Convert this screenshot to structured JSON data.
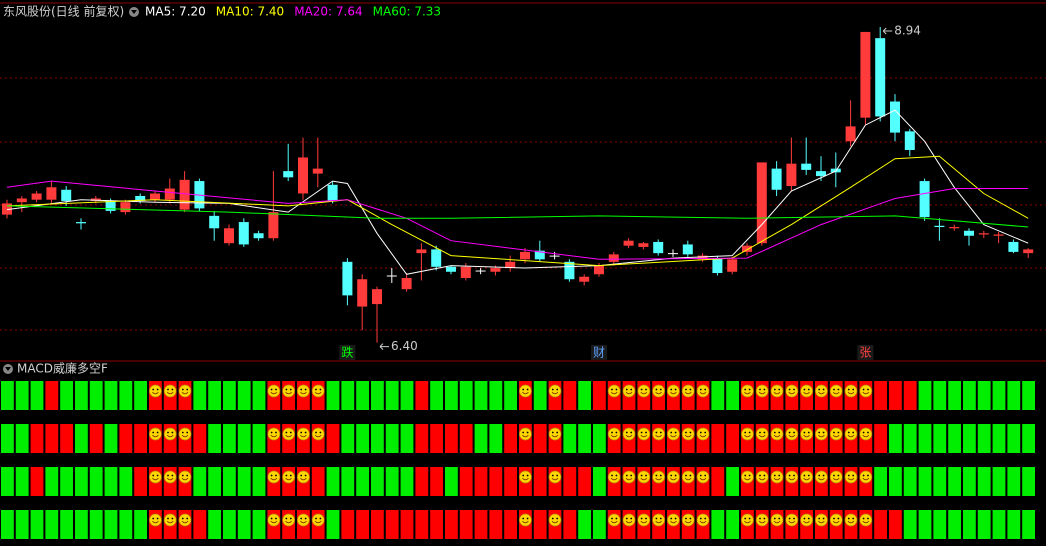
{
  "chart_data": [
    {
      "type": "candlestick",
      "title": "东风股份(日线 前复权)",
      "up_color": "#ff3b3b",
      "down_color": "#54ffff",
      "flat_color": "#ffffff",
      "ylim": [
        6.26,
        8.98
      ],
      "open": [
        7.43,
        7.53,
        7.55,
        7.55,
        7.63,
        7.37,
        7.54,
        7.54,
        7.45,
        7.58,
        7.55,
        7.55,
        7.47,
        7.7,
        7.42,
        7.2,
        7.37,
        7.28,
        7.24,
        7.78,
        7.6,
        7.76,
        7.67,
        7.05,
        6.69,
        6.71,
        6.94,
        6.83,
        7.12,
        7.15,
        7.01,
        6.92,
        6.98,
        6.97,
        7.0,
        7.07,
        7.14,
        7.1,
        7.05,
        6.89,
        6.95,
        7.05,
        7.18,
        7.17,
        7.21,
        7.12,
        7.19,
        7.07,
        7.08,
        6.97,
        7.13,
        7.2,
        7.8,
        7.66,
        7.84,
        7.78,
        7.8,
        8.02,
        8.21,
        8.85,
        8.34,
        8.1,
        7.7,
        7.34,
        7.32,
        7.3,
        7.27,
        7.26,
        7.21,
        7.12
      ],
      "high": [
        7.55,
        7.58,
        7.62,
        7.7,
        7.66,
        7.4,
        7.58,
        7.56,
        7.55,
        7.6,
        7.62,
        7.72,
        7.78,
        7.72,
        7.46,
        7.35,
        7.4,
        7.3,
        7.78,
        8.0,
        8.05,
        8.05,
        7.7,
        7.08,
        6.95,
        6.85,
        7.0,
        6.96,
        7.2,
        7.18,
        7.02,
        7.04,
        7.0,
        7.02,
        7.1,
        7.16,
        7.22,
        7.13,
        7.07,
        6.95,
        7.04,
        7.13,
        7.24,
        7.21,
        7.23,
        7.15,
        7.22,
        7.12,
        7.1,
        7.09,
        7.2,
        7.85,
        7.86,
        8.05,
        8.05,
        7.9,
        7.93,
        8.35,
        8.9,
        8.94,
        8.4,
        8.12,
        7.72,
        7.4,
        7.35,
        7.32,
        7.3,
        7.29,
        7.23,
        7.16
      ],
      "low": [
        7.4,
        7.45,
        7.53,
        7.52,
        7.5,
        7.31,
        7.52,
        7.44,
        7.43,
        7.52,
        7.53,
        7.52,
        7.45,
        7.46,
        7.22,
        7.18,
        7.17,
        7.22,
        7.22,
        7.7,
        7.55,
        7.65,
        7.52,
        6.7,
        6.5,
        6.4,
        6.88,
        6.81,
        6.9,
        6.98,
        6.95,
        6.9,
        6.95,
        6.94,
        6.97,
        7.04,
        7.05,
        7.07,
        6.89,
        6.86,
        6.93,
        7.02,
        7.16,
        7.15,
        7.1,
        7.09,
        7.09,
        7.05,
        6.94,
        6.95,
        7.1,
        7.18,
        7.58,
        7.62,
        7.75,
        7.7,
        7.65,
        7.98,
        8.15,
        8.18,
        8.02,
        7.9,
        7.38,
        7.22,
        7.3,
        7.18,
        7.24,
        7.2,
        7.12,
        7.08
      ],
      "close": [
        7.52,
        7.56,
        7.6,
        7.65,
        7.54,
        7.36,
        7.56,
        7.46,
        7.53,
        7.54,
        7.6,
        7.64,
        7.71,
        7.48,
        7.32,
        7.32,
        7.19,
        7.24,
        7.45,
        7.73,
        7.89,
        7.8,
        7.54,
        6.78,
        6.91,
        6.83,
        6.94,
        6.92,
        7.15,
        7.01,
        6.97,
        7.01,
        6.98,
        7.0,
        7.05,
        7.13,
        7.07,
        7.1,
        6.91,
        6.93,
        7.02,
        7.11,
        7.22,
        7.2,
        7.12,
        7.12,
        7.11,
        7.1,
        6.96,
        7.07,
        7.18,
        7.85,
        7.63,
        7.84,
        7.79,
        7.74,
        7.77,
        8.14,
        8.9,
        8.22,
        8.09,
        7.95,
        7.41,
        7.33,
        7.33,
        7.26,
        7.28,
        7.27,
        7.13,
        7.15
      ],
      "ma_series": [
        {
          "name": "MA5",
          "legend_label": "MA5: 7.20",
          "color": "#ffffff",
          "x": [
            0,
            5,
            10,
            15,
            19,
            22,
            23,
            25,
            27,
            30,
            35,
            40,
            45,
            49,
            51,
            53,
            56,
            58,
            60,
            62,
            64,
            66,
            69
          ],
          "values": [
            7.47,
            7.55,
            7.53,
            7.52,
            7.45,
            7.7,
            7.68,
            7.28,
            6.95,
            7.02,
            7.0,
            7.02,
            7.08,
            7.1,
            7.35,
            7.62,
            7.78,
            8.15,
            8.27,
            8.02,
            7.65,
            7.35,
            7.2
          ]
        },
        {
          "name": "MA10",
          "legend_label": "MA10: 7.40",
          "color": "#ffff00",
          "x": [
            0,
            10,
            19,
            23,
            26,
            30,
            40,
            49,
            53,
            57,
            60,
            63,
            66,
            69
          ],
          "values": [
            7.5,
            7.55,
            7.5,
            7.55,
            7.35,
            7.1,
            7.02,
            7.08,
            7.35,
            7.65,
            7.88,
            7.9,
            7.6,
            7.4
          ]
        },
        {
          "name": "MA20",
          "legend_label": "MA20: 7.64",
          "color": "#ff00ff",
          "x": [
            0,
            3,
            10,
            19,
            23,
            27,
            30,
            40,
            50,
            55,
            60,
            64,
            69
          ],
          "values": [
            7.65,
            7.7,
            7.62,
            7.52,
            7.55,
            7.4,
            7.22,
            7.07,
            7.08,
            7.35,
            7.56,
            7.64,
            7.64
          ]
        },
        {
          "name": "MA60",
          "legend_label": "MA60: 7.33",
          "color": "#00ff00",
          "x": [
            0,
            15,
            25,
            30,
            40,
            50,
            60,
            64,
            69
          ],
          "values": [
            7.5,
            7.45,
            7.4,
            7.4,
            7.42,
            7.4,
            7.42,
            7.38,
            7.33
          ]
        }
      ],
      "annotations": [
        {
          "index": 59,
          "value": 8.94,
          "label": "8.94"
        },
        {
          "index": 25,
          "value": 6.4,
          "label": "6.40"
        }
      ],
      "markers": [
        {
          "index": 23,
          "label": "跌",
          "color": "#00ff00"
        },
        {
          "index": 40,
          "label": "财",
          "color": "#5fa0ff"
        },
        {
          "index": 58,
          "label": "张",
          "color": "#ff4040"
        }
      ]
    },
    {
      "type": "signal-grid",
      "title": "MACD威廉多空F",
      "cell_colors": {
        "g": "#00ee00",
        "r": "#ff0000",
        "s": "#ff0000"
      },
      "rows": [
        [
          "g",
          "g",
          "g",
          "r",
          "g",
          "g",
          "g",
          "g",
          "g",
          "g",
          "s",
          "s",
          "s",
          "g",
          "g",
          "g",
          "g",
          "g",
          "s",
          "s",
          "s",
          "s",
          "g",
          "g",
          "g",
          "g",
          "g",
          "g",
          "r",
          "g",
          "g",
          "g",
          "g",
          "g",
          "g",
          "s",
          "g",
          "s",
          "r",
          "g",
          "r",
          "s",
          "s",
          "s",
          "s",
          "s",
          "s",
          "s",
          "g",
          "g",
          "s",
          "s",
          "s",
          "s",
          "s",
          "s",
          "s",
          "s",
          "s",
          "r",
          "r",
          "r",
          "g",
          "g",
          "g",
          "g",
          "g",
          "g",
          "g",
          "g"
        ],
        [
          "g",
          "g",
          "r",
          "r",
          "r",
          "g",
          "r",
          "g",
          "r",
          "r",
          "s",
          "s",
          "s",
          "r",
          "g",
          "g",
          "g",
          "g",
          "s",
          "s",
          "s",
          "s",
          "r",
          "g",
          "g",
          "g",
          "g",
          "g",
          "r",
          "r",
          "r",
          "r",
          "g",
          "g",
          "r",
          "s",
          "r",
          "s",
          "g",
          "g",
          "g",
          "s",
          "s",
          "s",
          "s",
          "s",
          "s",
          "s",
          "r",
          "r",
          "s",
          "s",
          "s",
          "s",
          "s",
          "s",
          "s",
          "s",
          "s",
          "r",
          "g",
          "g",
          "g",
          "g",
          "g",
          "g",
          "g",
          "g",
          "g",
          "g"
        ],
        [
          "g",
          "g",
          "r",
          "g",
          "g",
          "g",
          "g",
          "g",
          "g",
          "r",
          "s",
          "s",
          "s",
          "g",
          "g",
          "g",
          "g",
          "g",
          "s",
          "s",
          "s",
          "r",
          "g",
          "g",
          "g",
          "g",
          "g",
          "g",
          "r",
          "r",
          "g",
          "r",
          "r",
          "r",
          "r",
          "s",
          "r",
          "s",
          "r",
          "r",
          "g",
          "s",
          "s",
          "s",
          "s",
          "s",
          "s",
          "s",
          "r",
          "g",
          "s",
          "s",
          "s",
          "s",
          "s",
          "s",
          "s",
          "s",
          "s",
          "g",
          "g",
          "g",
          "g",
          "g",
          "g",
          "g",
          "g",
          "g",
          "g",
          "g"
        ],
        [
          "g",
          "g",
          "g",
          "g",
          "g",
          "g",
          "g",
          "g",
          "g",
          "g",
          "s",
          "s",
          "s",
          "r",
          "g",
          "g",
          "g",
          "g",
          "s",
          "s",
          "s",
          "s",
          "g",
          "r",
          "r",
          "r",
          "r",
          "r",
          "r",
          "r",
          "r",
          "r",
          "r",
          "r",
          "r",
          "s",
          "r",
          "s",
          "r",
          "g",
          "g",
          "s",
          "s",
          "s",
          "s",
          "s",
          "s",
          "s",
          "g",
          "g",
          "s",
          "s",
          "s",
          "s",
          "s",
          "s",
          "s",
          "s",
          "s",
          "r",
          "r",
          "g",
          "g",
          "g",
          "g",
          "g",
          "g",
          "g",
          "g",
          "g"
        ]
      ]
    }
  ]
}
